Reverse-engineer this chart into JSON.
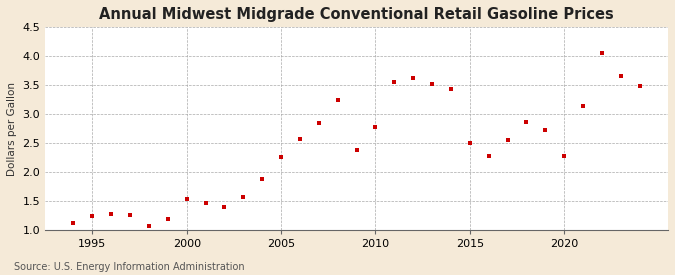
{
  "title": "Annual Midwest Midgrade Conventional Retail Gasoline Prices",
  "ylabel": "Dollars per Gallon",
  "source": "Source: U.S. Energy Information Administration",
  "fig_background_color": "#f5ead8",
  "plot_background_color": "#ffffff",
  "marker_color": "#cc0000",
  "years": [
    1994,
    1995,
    1996,
    1997,
    1998,
    1999,
    2000,
    2001,
    2002,
    2003,
    2004,
    2005,
    2006,
    2007,
    2008,
    2009,
    2010,
    2011,
    2012,
    2013,
    2014,
    2015,
    2016,
    2017,
    2018,
    2019,
    2020,
    2021,
    2022,
    2023,
    2024
  ],
  "prices": [
    1.12,
    1.24,
    1.27,
    1.25,
    1.07,
    1.19,
    1.53,
    1.47,
    1.4,
    1.57,
    1.87,
    2.25,
    2.57,
    2.85,
    3.25,
    2.38,
    2.78,
    3.55,
    3.63,
    3.52,
    3.43,
    2.5,
    2.27,
    2.55,
    2.87,
    2.72,
    2.27,
    3.14,
    4.06,
    3.65,
    3.48
  ],
  "xlim": [
    1992.5,
    2025.5
  ],
  "ylim": [
    1.0,
    4.5
  ],
  "yticks": [
    1.0,
    1.5,
    2.0,
    2.5,
    3.0,
    3.5,
    4.0,
    4.5
  ],
  "xticks": [
    1995,
    2000,
    2005,
    2010,
    2015,
    2020
  ],
  "grid_color": "#aaaaaa",
  "title_fontsize": 10.5,
  "label_fontsize": 7.5,
  "tick_fontsize": 8,
  "source_fontsize": 7
}
